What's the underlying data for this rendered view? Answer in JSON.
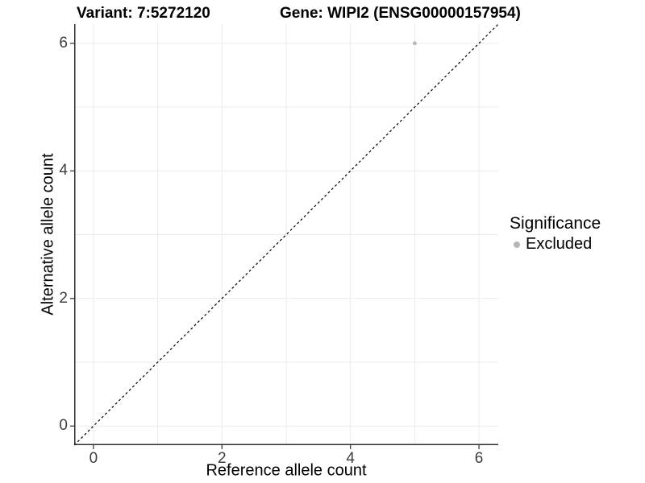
{
  "chart_data": {
    "type": "scatter",
    "title_left": "Variant: 7:5272120",
    "title_right": "Gene: WIPI2 (ENSG00000157954)",
    "xlabel": "Reference allele count",
    "ylabel": "Alternative allele count",
    "xlim": [
      -0.3,
      6.3
    ],
    "ylim": [
      -0.3,
      6.3
    ],
    "xticks": [
      0,
      2,
      4,
      6
    ],
    "yticks": [
      0,
      2,
      4,
      6
    ],
    "grid": {
      "on": true,
      "interval": 1,
      "color": "#ebebeb"
    },
    "points": [
      {
        "x": 5,
        "y": 6,
        "significance": "Excluded",
        "color": "#b5b5b5"
      }
    ],
    "reference_line": {
      "type": "identity y=x",
      "style": "dashed",
      "color": "#000000"
    },
    "legend": {
      "title": "Significance",
      "position": "right-center",
      "entries": [
        {
          "label": "Excluded",
          "color": "#b5b5b5",
          "marker": "circle"
        }
      ]
    }
  },
  "colors": {
    "background": "#ffffff",
    "axis_line": "#2e2e2e",
    "tick_label": "#3d3d3d",
    "gridline": "#ebebeb",
    "point": "#b5b5b5",
    "dashed_line": "#000000"
  }
}
